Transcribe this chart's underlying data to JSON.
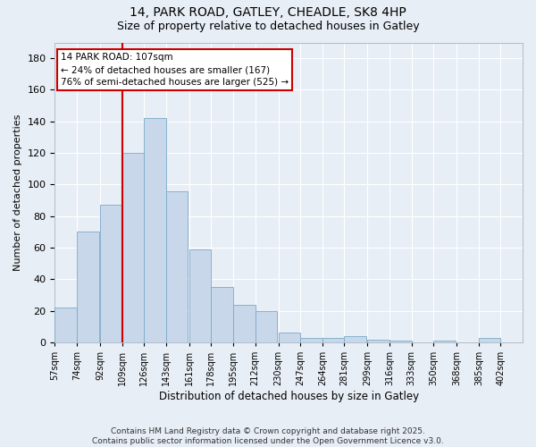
{
  "title1": "14, PARK ROAD, GATLEY, CHEADLE, SK8 4HP",
  "title2": "Size of property relative to detached houses in Gatley",
  "xlabel": "Distribution of detached houses by size in Gatley",
  "ylabel": "Number of detached properties",
  "bar_color": "#c8d8ea",
  "bar_edge_color": "#7aaaca",
  "background_color": "#e8eef5",
  "grid_color": "#ffffff",
  "categories": [
    "57sqm",
    "74sqm",
    "92sqm",
    "109sqm",
    "126sqm",
    "143sqm",
    "161sqm",
    "178sqm",
    "195sqm",
    "212sqm",
    "230sqm",
    "247sqm",
    "264sqm",
    "281sqm",
    "299sqm",
    "316sqm",
    "333sqm",
    "350sqm",
    "368sqm",
    "385sqm",
    "402sqm"
  ],
  "values": [
    22,
    70,
    87,
    120,
    142,
    96,
    59,
    35,
    24,
    20,
    6,
    3,
    3,
    4,
    2,
    1,
    0,
    1,
    0,
    3,
    0
  ],
  "annotation_line1": "14 PARK ROAD: 107sqm",
  "annotation_line2": "← 24% of detached houses are smaller (167)",
  "annotation_line3": "76% of semi-detached houses are larger (525) →",
  "annotation_box_color": "#ffffff",
  "annotation_box_edge": "#cc0000",
  "vline_color": "#cc0000",
  "ylim": [
    0,
    190
  ],
  "yticks": [
    0,
    20,
    40,
    60,
    80,
    100,
    120,
    140,
    160,
    180
  ],
  "bin_starts": [
    57,
    74,
    92,
    109,
    126,
    143,
    161,
    178,
    195,
    212,
    230,
    247,
    264,
    281,
    299,
    316,
    333,
    350,
    368,
    385,
    402
  ],
  "bin_width": 17,
  "footer": "Contains HM Land Registry data © Crown copyright and database right 2025.\nContains public sector information licensed under the Open Government Licence v3.0."
}
